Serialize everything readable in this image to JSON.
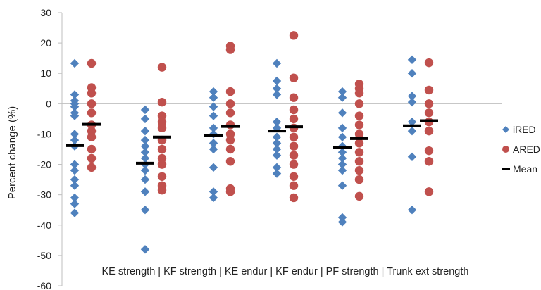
{
  "chart_data": {
    "type": "scatter",
    "ylabel": "Percent change (%)",
    "ylim": [
      -60,
      30
    ],
    "yticks": [
      30,
      20,
      10,
      0,
      -10,
      -20,
      -30,
      -40,
      -50,
      -60
    ],
    "category_label_line": "KE strength | KF strength | KE endur | KF endur | PF strength | Trunk ext strength",
    "categories": [
      "KE strength",
      "KF strength",
      "KE endur",
      "KF endur",
      "PF strength",
      "Trunk ext strength"
    ],
    "legend_position": "right",
    "gridlines": false,
    "series": [
      {
        "name": "iRED",
        "marker": "diamond",
        "color": "#4f81bd",
        "values": [
          [
            13.3,
            3,
            1,
            0,
            -1,
            -3,
            -4,
            -10,
            -12,
            -14,
            -20,
            -22,
            -25,
            -27,
            -31,
            -33,
            -36
          ],
          [
            -2,
            -5,
            -9,
            -12,
            -14,
            -16,
            -18,
            -20,
            -22,
            -25,
            -29,
            -35,
            -48
          ],
          [
            4,
            2,
            -1,
            -4,
            -8,
            -10,
            -13,
            -15,
            -21,
            -29,
            -31
          ],
          [
            13.3,
            7.5,
            5,
            3,
            -6,
            -8,
            -11,
            -13,
            -15,
            -17,
            -21,
            -23
          ],
          [
            4,
            2,
            -3,
            -8,
            -11,
            -14,
            -16,
            -18,
            -20,
            -22,
            -27,
            -37.5,
            -39
          ],
          [
            14.5,
            10,
            2.5,
            0.5,
            -6,
            -9,
            -17.5,
            -35
          ]
        ]
      },
      {
        "name": "ARED",
        "marker": "circle",
        "color": "#c0504d",
        "values": [
          [
            13.3,
            5.3,
            3.5,
            0,
            -3,
            -7,
            -9,
            -11,
            -15,
            -18,
            -21
          ],
          [
            12,
            0.5,
            -4,
            -6,
            -8,
            -12,
            -15,
            -18,
            -20,
            -24,
            -27,
            -28.5
          ],
          [
            19,
            17.8,
            4,
            0,
            -3,
            -7,
            -10,
            -12,
            -15,
            -19,
            -28,
            -29
          ],
          [
            22.5,
            8.5,
            2,
            -2,
            -5,
            -8,
            -11,
            -14,
            -17,
            -20,
            -24,
            -27,
            -31
          ],
          [
            6.5,
            5,
            3.5,
            0,
            -4,
            -7,
            -10,
            -13,
            -16,
            -19,
            -22,
            -25,
            -30.5
          ],
          [
            13.5,
            4.5,
            0,
            -3,
            -6,
            -9,
            -15.5,
            -19,
            -29
          ]
        ]
      },
      {
        "name": "Mean",
        "marker": "dash",
        "color": "#000000",
        "values": [
          [
            -13.8,
            -19.6,
            -10.6,
            -9,
            -14.3,
            -7.3
          ],
          [
            -6.8,
            -11,
            -7.5,
            -7.6,
            -11.5,
            -5.6
          ]
        ]
      }
    ]
  }
}
